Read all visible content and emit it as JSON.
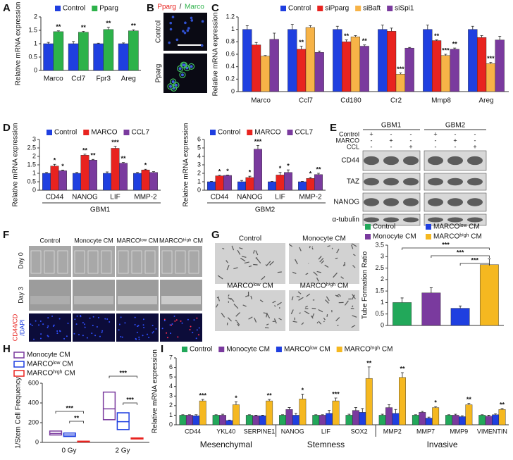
{
  "panel_labels": [
    "A",
    "B",
    "C",
    "D",
    "E",
    "F",
    "G",
    "H",
    "I"
  ],
  "panel_b": {
    "title_red": "Pparg",
    "title_sep": "/",
    "title_green": "Marco",
    "rows": [
      "Control",
      "Pparg"
    ]
  },
  "panel_e": {
    "columns": [
      "GBM1",
      "GBM2"
    ],
    "conditions": [
      "Control",
      "MARCO",
      "CCL"
    ],
    "signs": [
      [
        "+",
        "-",
        "-",
        "+",
        "-",
        "-"
      ],
      [
        "-",
        "+",
        "-",
        "-",
        "+",
        "-"
      ],
      [
        "-",
        "-",
        "+",
        "-",
        "-",
        "+"
      ]
    ],
    "bands": [
      "CD44",
      "TAZ",
      "NANOG",
      "α-tubulin"
    ]
  },
  "panel_f": {
    "columns": [
      "Control",
      "Monocyte CM",
      "MARCOˡᵒʷ CM",
      "MARCOʰⁱᵍʰ CM"
    ],
    "rows": [
      "Day 0",
      "Day 3"
    ],
    "stain_red": "CD44/CD",
    "stain_blue": "/DAPI"
  },
  "panel_g": {
    "images": [
      "Control",
      "Monocyte CM",
      "MARCOˡᵒʷ CM",
      "MARCOʰⁱᵍʰ CM"
    ]
  },
  "chart_data": [
    {
      "type": "bar",
      "ylabel": "Relative mRNA expression",
      "categories": [
        "Marco",
        "Ccl7",
        "Fpr3",
        "Areg"
      ],
      "series": [
        {
          "name": "Control",
          "color": "#1f3fe0",
          "values": [
            1,
            1,
            1,
            1
          ],
          "errors": [
            0.05,
            0.08,
            0.02,
            0.03
          ]
        },
        {
          "name": "Pparg",
          "color": "#2db24a",
          "values": [
            1.45,
            1.43,
            1.53,
            1.48
          ],
          "errors": [
            0.03,
            0.03,
            0.08,
            0.04
          ],
          "stars": [
            "**",
            "**",
            "**",
            "**"
          ]
        }
      ],
      "ylim": [
        0,
        2
      ],
      "yticks": [
        0,
        0.5,
        1,
        1.5,
        2
      ]
    },
    {
      "type": "bar",
      "ylabel": "Relative mRNA expression",
      "categories": [
        "Marco",
        "Ccl7",
        "Cd180",
        "Cr2",
        "Mmp8",
        "Areg"
      ],
      "series": [
        {
          "name": "Control",
          "color": "#1f3fe0",
          "values": [
            1,
            1,
            1,
            1,
            1,
            1
          ],
          "errors": [
            0.06,
            0.08,
            0.05,
            0.07,
            0.07,
            0.05
          ]
        },
        {
          "name": "siPparg",
          "color": "#e8231f",
          "values": [
            0.75,
            0.68,
            0.8,
            0.97,
            0.82,
            0.87
          ],
          "errors": [
            0.04,
            0.05,
            0.03,
            0.05,
            0.01,
            0.03
          ],
          "stars": [
            null,
            "**",
            "**",
            null,
            "**",
            null
          ]
        },
        {
          "name": "siBaft",
          "color": "#f7b347",
          "values": [
            0.57,
            1.03,
            0.88,
            0.28,
            0.58,
            0.45
          ],
          "errors": [
            0.01,
            0.03,
            0.02,
            0.02,
            0.02,
            0.02
          ],
          "stars": [
            null,
            null,
            null,
            "***",
            "***",
            "***"
          ]
        },
        {
          "name": "siSpi1",
          "color": "#7a3a9e",
          "values": [
            0.84,
            0.63,
            0.73,
            0.7,
            0.68,
            0.83
          ],
          "errors": [
            0.1,
            0.02,
            0.02,
            0.01,
            0.02,
            0.06
          ],
          "stars": [
            null,
            null,
            "**",
            null,
            "**",
            null
          ]
        }
      ],
      "ylim": [
        0,
        1.2
      ],
      "yticks": [
        0,
        0.2,
        0.4,
        0.6,
        0.8,
        1,
        1.2
      ]
    },
    {
      "type": "bar",
      "ylabel": "Relative mRNA expression",
      "xlabel": "GBM1",
      "categories": [
        "CD44",
        "NANOG",
        "LIF",
        "MMP-2"
      ],
      "series": [
        {
          "name": "Control",
          "color": "#1f3fe0",
          "values": [
            1,
            1,
            1,
            1
          ],
          "errors": [
            0.05,
            0.05,
            0.08,
            0.05
          ]
        },
        {
          "name": "MARCO",
          "color": "#e8231f",
          "values": [
            1.43,
            2.07,
            2.48,
            1.2
          ],
          "errors": [
            0.1,
            0.06,
            0.12,
            0.04
          ],
          "stars": [
            "*",
            "**",
            "***",
            "*"
          ]
        },
        {
          "name": "CCL7",
          "color": "#7a3a9e",
          "values": [
            1.15,
            1.78,
            1.6,
            1.05
          ],
          "errors": [
            0.04,
            0.04,
            0.04,
            0.05
          ],
          "stars": [
            "*",
            "**",
            "**",
            null
          ]
        }
      ],
      "ylim": [
        0,
        3
      ],
      "yticks": [
        0,
        0.5,
        1,
        1.5,
        2,
        2.5,
        3
      ]
    },
    {
      "type": "bar",
      "ylabel": "Relative mRNA expression",
      "xlabel": "GBM2",
      "categories": [
        "CD44",
        "NANOG",
        "LIF",
        "MMP-2"
      ],
      "series": [
        {
          "name": "Control",
          "color": "#1f3fe0",
          "values": [
            1,
            1,
            1,
            1
          ],
          "errors": [
            0.05,
            0.15,
            0.05,
            0.05
          ]
        },
        {
          "name": "MARCO",
          "color": "#e8231f",
          "values": [
            1.7,
            1.5,
            1.8,
            1.4
          ],
          "errors": [
            0.06,
            0.15,
            0.3,
            0.1
          ],
          "stars": [
            "*",
            "*",
            "*",
            "*"
          ]
        },
        {
          "name": "CCL7",
          "color": "#7a3a9e",
          "values": [
            1.75,
            4.85,
            2.1,
            1.85
          ],
          "errors": [
            0.05,
            0.45,
            0.3,
            0.15
          ],
          "stars": [
            "*",
            "***",
            "*",
            "**"
          ]
        }
      ],
      "ylim": [
        0,
        6
      ],
      "yticks": [
        0,
        1,
        2,
        3,
        4,
        5,
        6
      ]
    },
    {
      "type": "bar",
      "ylabel": "Tube Formation Ratio",
      "categories": [
        "Control",
        "Monocyte CM",
        "MARCOˡᵒʷ CM",
        "MARCOʰⁱᵍʰ CM"
      ],
      "values": [
        1,
        1.42,
        0.75,
        2.65
      ],
      "errors": [
        0.2,
        0.22,
        0.1,
        0.25
      ],
      "colors": [
        "#22a85a",
        "#7a3a9e",
        "#1f3fe0",
        "#f5b820"
      ],
      "brackets": [
        "***",
        "***",
        "***"
      ],
      "ylim": [
        0,
        3.5
      ],
      "yticks": [
        0,
        0.5,
        1,
        1.5,
        2,
        2.5,
        3,
        3.5
      ]
    },
    {
      "type": "box",
      "ylabel": "1/Stem Cell Frequency",
      "categories": [
        "0 Gy",
        "2 Gy"
      ],
      "series": [
        {
          "name": "Monocyte CM",
          "color": "#7a3a9e",
          "low": [
            75,
            230
          ],
          "median": [
            90,
            340
          ],
          "high": [
            115,
            510
          ]
        },
        {
          "name": "MARCOˡᵒʷ CM",
          "color": "#1f3fe0",
          "low": [
            60,
            130
          ],
          "median": [
            75,
            210
          ],
          "high": [
            95,
            300
          ]
        },
        {
          "name": "MARCOʰⁱᵍʰ CM",
          "color": "#e8231f",
          "low": [
            8,
            35
          ],
          "median": [
            10,
            40
          ],
          "high": [
            12,
            45
          ]
        }
      ],
      "brackets": [
        "***",
        "**",
        "***",
        "***"
      ],
      "ylim": [
        0,
        600
      ],
      "yticks": [
        0,
        200,
        400,
        600
      ]
    },
    {
      "type": "bar",
      "ylabel": "Relative mRNA expression",
      "categories": [
        "CD44",
        "YKL40",
        "SERPINE1",
        "NANOG",
        "LIF",
        "SOX2",
        "MMP2",
        "MMP7",
        "MMP9",
        "VIMENTIN"
      ],
      "groups": [
        "Mesenchymal",
        "Stemness",
        "Invasive"
      ],
      "series": [
        {
          "name": "Control",
          "color": "#22a85a",
          "values": [
            1,
            1,
            1,
            1,
            1,
            1,
            1,
            1,
            1,
            1
          ],
          "errors": [
            0.05,
            0.05,
            0.05,
            0.05,
            0.05,
            0.1,
            0.1,
            0.05,
            0.05,
            0.05
          ]
        },
        {
          "name": "Monocyte CM",
          "color": "#7a3a9e",
          "values": [
            1,
            1,
            0.95,
            1.6,
            1,
            1.5,
            1.8,
            1.3,
            1,
            0.9
          ],
          "errors": [
            0.05,
            0.1,
            0.05,
            0.2,
            0.05,
            0.3,
            0.3,
            0.1,
            0.1,
            0.1
          ]
        },
        {
          "name": "MARCOˡᵒʷ CM",
          "color": "#1f3fe0",
          "values": [
            0.95,
            0.45,
            0.95,
            1,
            1.2,
            1.3,
            1.2,
            0.7,
            0.85,
            1.05
          ],
          "errors": [
            0.1,
            0.05,
            0.05,
            0.2,
            0.3,
            0.4,
            0.4,
            0.1,
            0.1,
            0.1
          ]
        },
        {
          "name": "MARCOʰⁱᵍʰ CM",
          "color": "#f5b820",
          "values": [
            2.5,
            2.1,
            2.5,
            2.7,
            2.5,
            4.85,
            4.95,
            1.8,
            2.1,
            1.6
          ],
          "errors": [
            0.15,
            0.3,
            0.15,
            0.5,
            0.3,
            1.2,
            0.5,
            0.1,
            0.15,
            0.1
          ],
          "stars": [
            "***",
            "*",
            "**",
            "*",
            "***",
            "**",
            "**",
            "*",
            "**",
            "**"
          ]
        }
      ],
      "ylim": [
        0,
        7
      ],
      "yticks": [
        0,
        1,
        2,
        3,
        4,
        5,
        6,
        7
      ]
    }
  ]
}
